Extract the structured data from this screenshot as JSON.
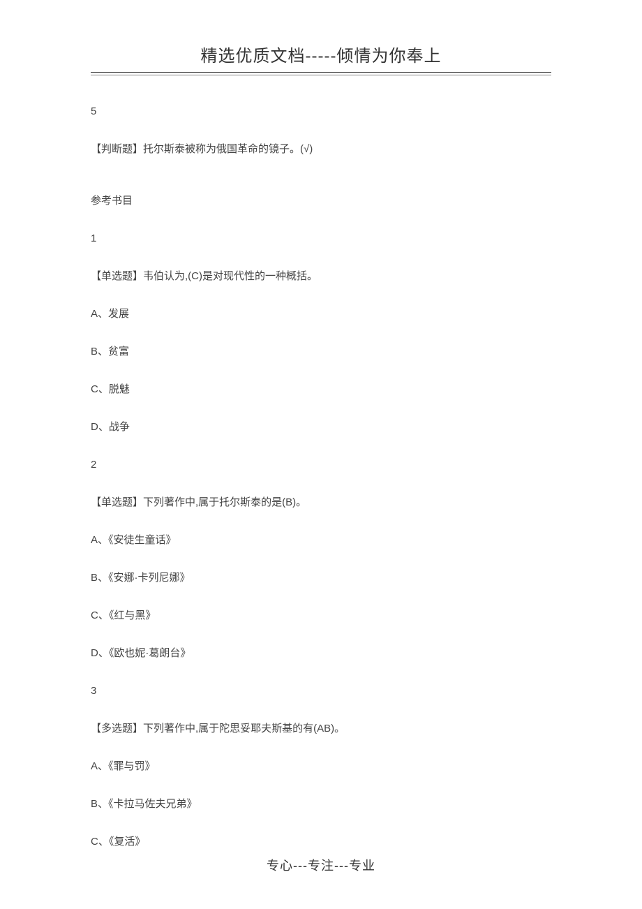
{
  "header": {
    "title": "精选优质文档-----倾情为你奉上"
  },
  "content": {
    "q5_num": "5",
    "q5_text": "【判断题】托尔斯泰被称为俄国革命的镜子。(√)",
    "section_title": "参考书目",
    "q1_num": "1",
    "q1_text": "【单选题】韦伯认为,(C)是对现代性的一种概括。",
    "q1_a": "A、发展",
    "q1_b": "B、贫富",
    "q1_c": "C、脱魅",
    "q1_d": "D、战争",
    "q2_num": "2",
    "q2_text": "【单选题】下列著作中,属于托尔斯泰的是(B)。",
    "q2_a": "A、《安徒生童话》",
    "q2_b": "B、《安娜·卡列尼娜》",
    "q2_c": "C、《红与黑》",
    "q2_d": "D、《欧也妮·葛朗台》",
    "q3_num": "3",
    "q3_text": "【多选题】下列著作中,属于陀思妥耶夫斯基的有(AB)。",
    "q3_a": "A、《罪与罚》",
    "q3_b": "B、《卡拉马佐夫兄弟》",
    "q3_c": "C、《复活》"
  },
  "footer": {
    "text": "专心---专注---专业"
  }
}
